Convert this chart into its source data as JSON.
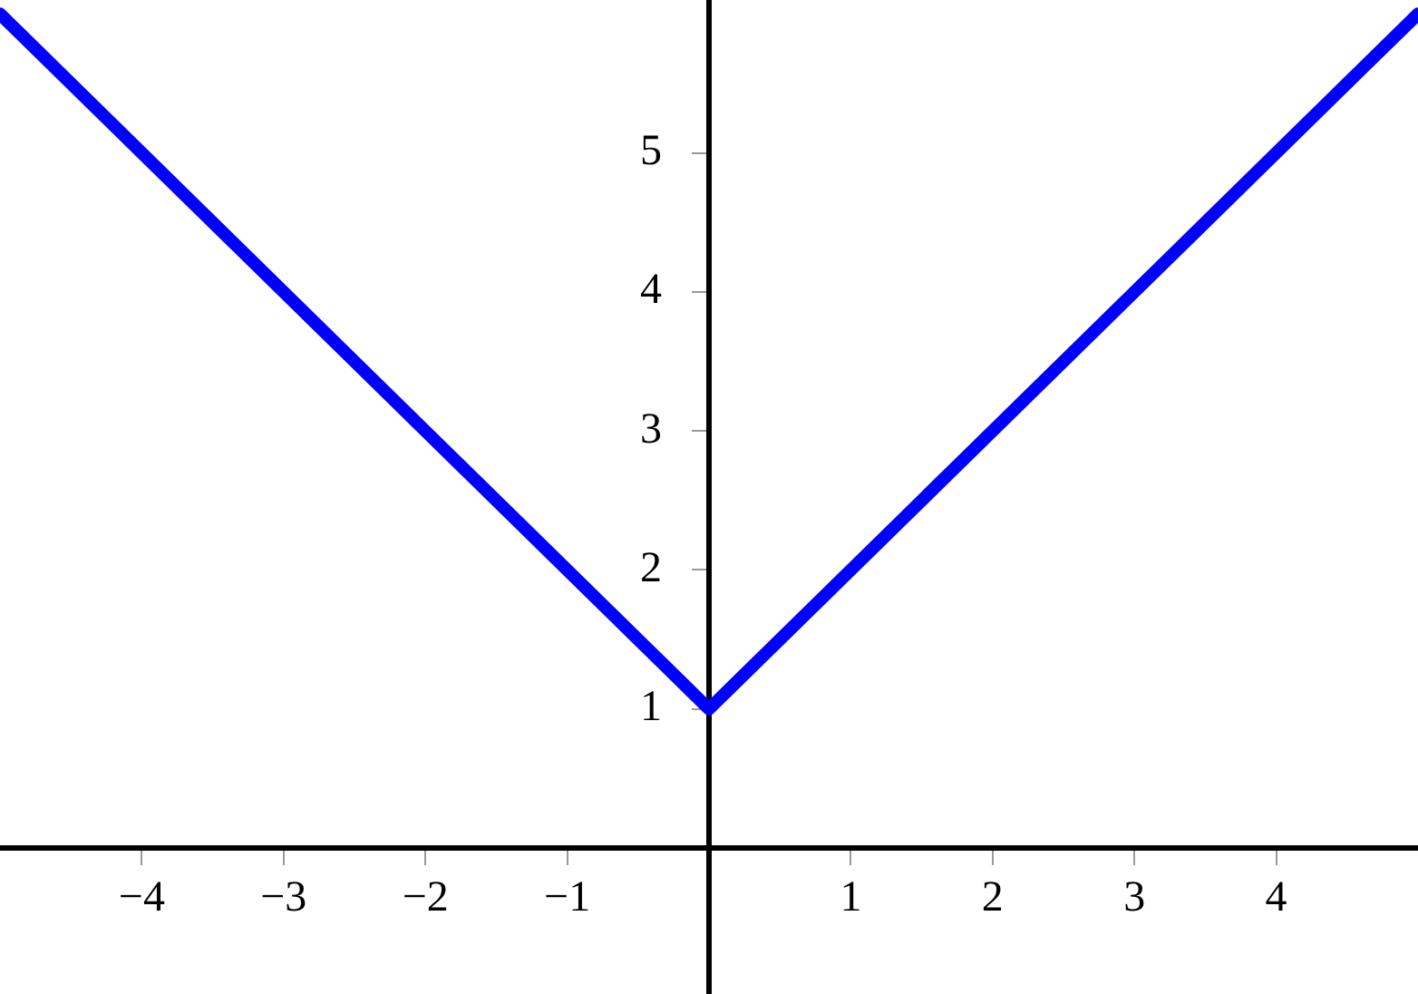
{
  "chart_data": {
    "type": "line",
    "x": [
      -5,
      0,
      5
    ],
    "series": [
      {
        "color": "#0000ff",
        "values": [
          6,
          1,
          6
        ]
      }
    ],
    "xlim": [
      -5,
      5
    ],
    "ylim": [
      -1.05,
      6.1
    ],
    "xticks": [
      -4,
      -3,
      -2,
      -1,
      1,
      2,
      3,
      4
    ],
    "yticks": [
      1,
      2,
      3,
      4,
      5
    ],
    "grid": false,
    "legend": false,
    "marker": "none",
    "line_style": "solid"
  }
}
